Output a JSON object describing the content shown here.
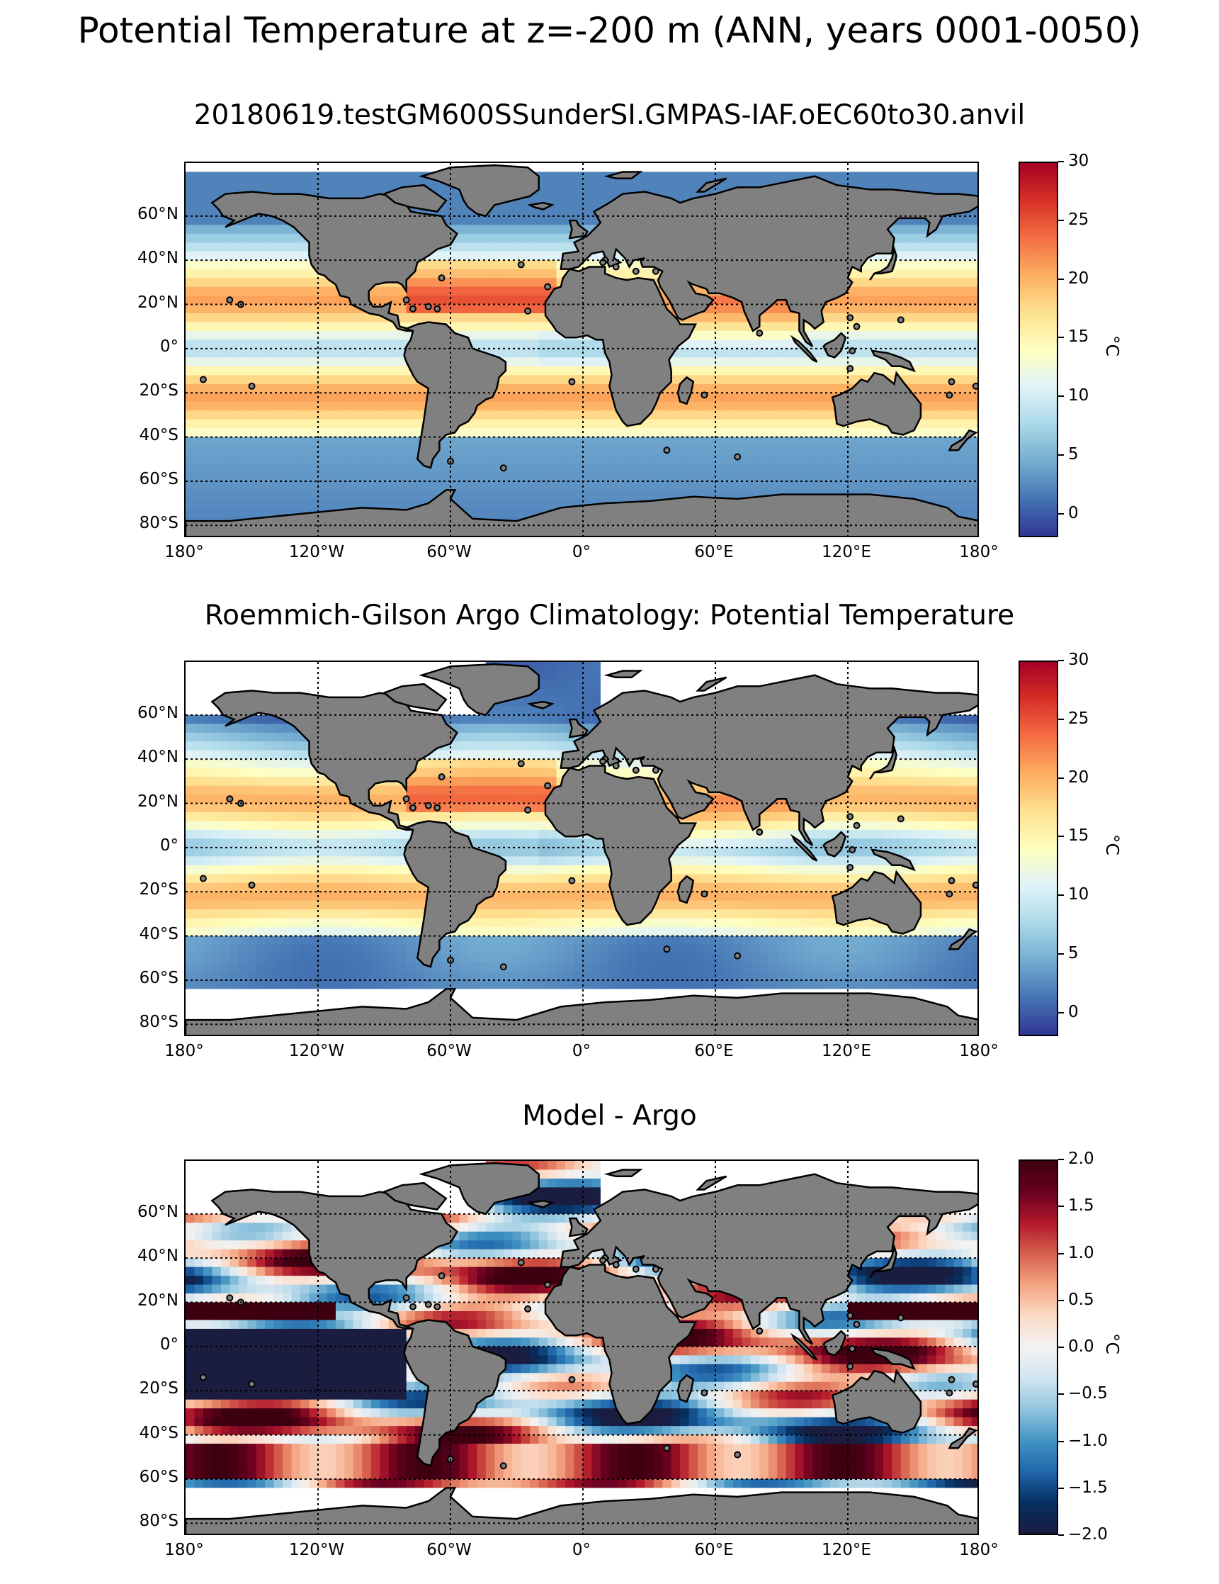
{
  "title": "Potential Temperature at z=-200 m (ANN, years 0001-0050)",
  "lon_labels": [
    "180°",
    "120°W",
    "60°W",
    "0°",
    "60°E",
    "120°E",
    "180°"
  ],
  "lat_labels": [
    "60°N",
    "40°N",
    "20°N",
    "0°",
    "20°S",
    "40°S",
    "60°S",
    "80°S"
  ],
  "colors": {
    "land": "#808080",
    "coast": "#000000",
    "missing": "#ffffff"
  },
  "panels": [
    {
      "title": "20180619.testGM600SSunderSI.GMPAS-IAF.oEC60to30.anvil",
      "cbar_ticks": [
        "30",
        "25",
        "20",
        "15",
        "10",
        "5",
        "0"
      ],
      "cbar_range": [
        -2,
        30
      ],
      "cbar_unit": "°C",
      "colormap": "RdYlBu_r",
      "cmap_stops": [
        "#313695",
        "#4575b4",
        "#74add1",
        "#abd9e9",
        "#e0f3f8",
        "#ffffbf",
        "#fee090",
        "#fdae61",
        "#f46d43",
        "#d73027",
        "#a50026"
      ]
    },
    {
      "title": "Roemmich-Gilson Argo Climatology: Potential Temperature",
      "cbar_ticks": [
        "30",
        "25",
        "20",
        "15",
        "10",
        "5",
        "0"
      ],
      "cbar_range": [
        -2,
        30
      ],
      "cbar_unit": "°C",
      "colormap": "RdYlBu_r",
      "cmap_stops": [
        "#313695",
        "#4575b4",
        "#74add1",
        "#abd9e9",
        "#e0f3f8",
        "#ffffbf",
        "#fee090",
        "#fdae61",
        "#f46d43",
        "#d73027",
        "#a50026"
      ]
    },
    {
      "title": "Model - Argo",
      "cbar_ticks": [
        "2.0",
        "1.5",
        "1.0",
        "0.5",
        "0.0",
        "−0.5",
        "−1.0",
        "−1.5",
        "−2.0"
      ],
      "cbar_range": [
        -2,
        2
      ],
      "cbar_unit": "°C",
      "colormap": "RdBu_r",
      "cmap_stops": [
        "#1a1c40",
        "#053061",
        "#2166ac",
        "#4393c3",
        "#92c5de",
        "#d1e5f0",
        "#f2f2f2",
        "#fddbc7",
        "#f4a582",
        "#d6604d",
        "#b2182b",
        "#67001f",
        "#3d0010"
      ]
    }
  ]
}
